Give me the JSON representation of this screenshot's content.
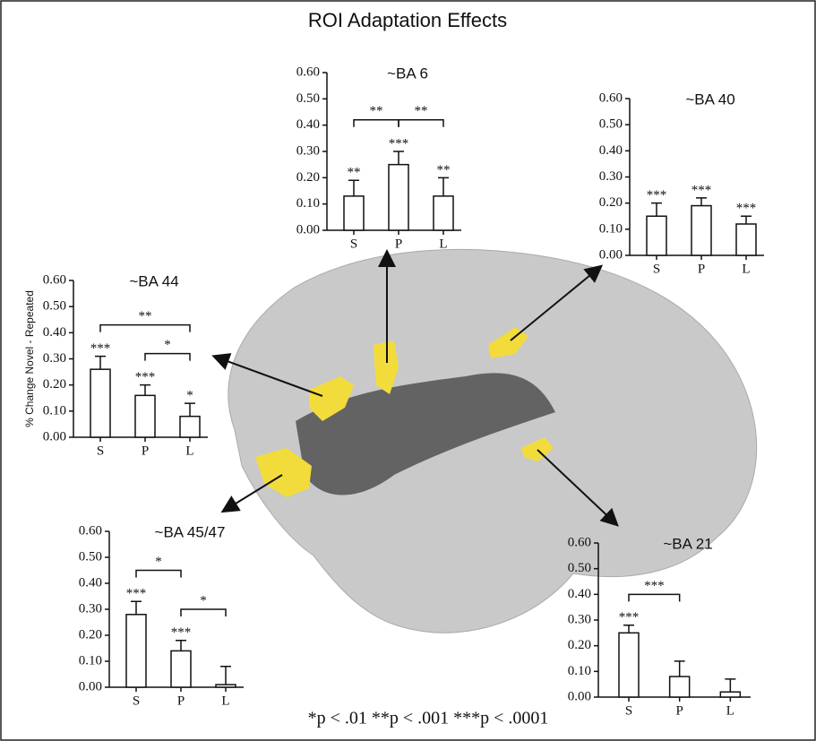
{
  "title": "ROI Adaptation Effects",
  "footnote": "*p < .01 **p < .001 ***p < .0001",
  "chart_data": [
    {
      "type": "bar",
      "title": "~BA 6",
      "categories": [
        "S",
        "P",
        "L"
      ],
      "values": [
        0.13,
        0.25,
        0.13
      ],
      "errors": [
        0.06,
        0.05,
        0.07
      ],
      "significance": [
        "**",
        "***",
        "**"
      ],
      "brackets": [
        {
          "between": [
            "S",
            "P"
          ],
          "label": "**"
        },
        {
          "between": [
            "P",
            "L"
          ],
          "label": "**"
        }
      ],
      "ylim": [
        0,
        0.6
      ],
      "yticks": [
        {
          "value": 0,
          "label": "0.00"
        },
        {
          "value": 0.1,
          "label": "0.10"
        },
        {
          "value": 0.2,
          "label": "0.20"
        },
        {
          "value": 0.3,
          "label": "0.30"
        },
        {
          "value": 0.4,
          "label": "0.40"
        },
        {
          "value": 0.5,
          "label": "0.50"
        },
        {
          "value": 0.6,
          "label": "0.60"
        }
      ]
    },
    {
      "type": "bar",
      "title": "~BA 40",
      "categories": [
        "S",
        "P",
        "L"
      ],
      "values": [
        0.15,
        0.19,
        0.12
      ],
      "errors": [
        0.05,
        0.03,
        0.03
      ],
      "significance": [
        "***",
        "***",
        "***"
      ],
      "brackets": [],
      "ylim": [
        0,
        0.6
      ],
      "yticks": [
        {
          "value": 0,
          "label": "0.00"
        },
        {
          "value": 0.1,
          "label": "0.10"
        },
        {
          "value": 0.2,
          "label": "0.20"
        },
        {
          "value": 0.3,
          "label": "0.30"
        },
        {
          "value": 0.4,
          "label": "0.40"
        },
        {
          "value": 0.5,
          "label": "0.50"
        },
        {
          "value": 0.6,
          "label": "0.60"
        }
      ]
    },
    {
      "type": "bar",
      "title": "~BA 44",
      "ylabel": "% Change Novel - Repeated",
      "categories": [
        "S",
        "P",
        "L"
      ],
      "values": [
        0.26,
        0.16,
        0.08
      ],
      "errors": [
        0.05,
        0.04,
        0.05
      ],
      "significance": [
        "***",
        "***",
        "*"
      ],
      "brackets": [
        {
          "between": [
            "S",
            "L"
          ],
          "label": "**"
        },
        {
          "between": [
            "P",
            "L"
          ],
          "label": "*"
        }
      ],
      "ylim": [
        0,
        0.6
      ],
      "yticks": [
        {
          "value": 0,
          "label": "0.00"
        },
        {
          "value": 0.1,
          "label": "0.10"
        },
        {
          "value": 0.2,
          "label": "0.20"
        },
        {
          "value": 0.3,
          "label": "0.30"
        },
        {
          "value": 0.4,
          "label": "0.40"
        },
        {
          "value": 0.5,
          "label": "0.50"
        },
        {
          "value": 0.6,
          "label": "0.60"
        }
      ]
    },
    {
      "type": "bar",
      "title": "~BA 45/47",
      "categories": [
        "S",
        "P",
        "L"
      ],
      "values": [
        0.28,
        0.14,
        0.01
      ],
      "errors": [
        0.05,
        0.04,
        0.07
      ],
      "significance": [
        "***",
        "***",
        null
      ],
      "brackets": [
        {
          "between": [
            "S",
            "P"
          ],
          "label": "*"
        },
        {
          "between": [
            "P",
            "L"
          ],
          "label": "*"
        }
      ],
      "ylim": [
        0,
        0.6
      ],
      "yticks": [
        {
          "value": 0,
          "label": "0.00"
        },
        {
          "value": 0.1,
          "label": "0.10"
        },
        {
          "value": 0.2,
          "label": "0.20"
        },
        {
          "value": 0.3,
          "label": "0.30"
        },
        {
          "value": 0.4,
          "label": "0.40"
        },
        {
          "value": 0.5,
          "label": "0.50"
        },
        {
          "value": 0.6,
          "label": "0.60"
        }
      ]
    },
    {
      "type": "bar",
      "title": "~BA 21",
      "categories": [
        "S",
        "P",
        "L"
      ],
      "values": [
        0.25,
        0.08,
        0.02
      ],
      "errors": [
        0.03,
        0.06,
        0.05
      ],
      "significance": [
        "***",
        null,
        null
      ],
      "brackets": [
        {
          "between": [
            "S",
            "P"
          ],
          "label": "***"
        }
      ],
      "ylim": [
        0,
        0.6
      ],
      "yticks": [
        {
          "value": 0,
          "label": "0.00"
        },
        {
          "value": 0.1,
          "label": "0.10"
        },
        {
          "value": 0.2,
          "label": "0.20"
        },
        {
          "value": 0.3,
          "label": "0.30"
        },
        {
          "value": 0.4,
          "label": "0.40"
        },
        {
          "value": 0.5,
          "label": "0.50"
        },
        {
          "value": 0.6,
          "label": "0.60"
        }
      ]
    }
  ]
}
